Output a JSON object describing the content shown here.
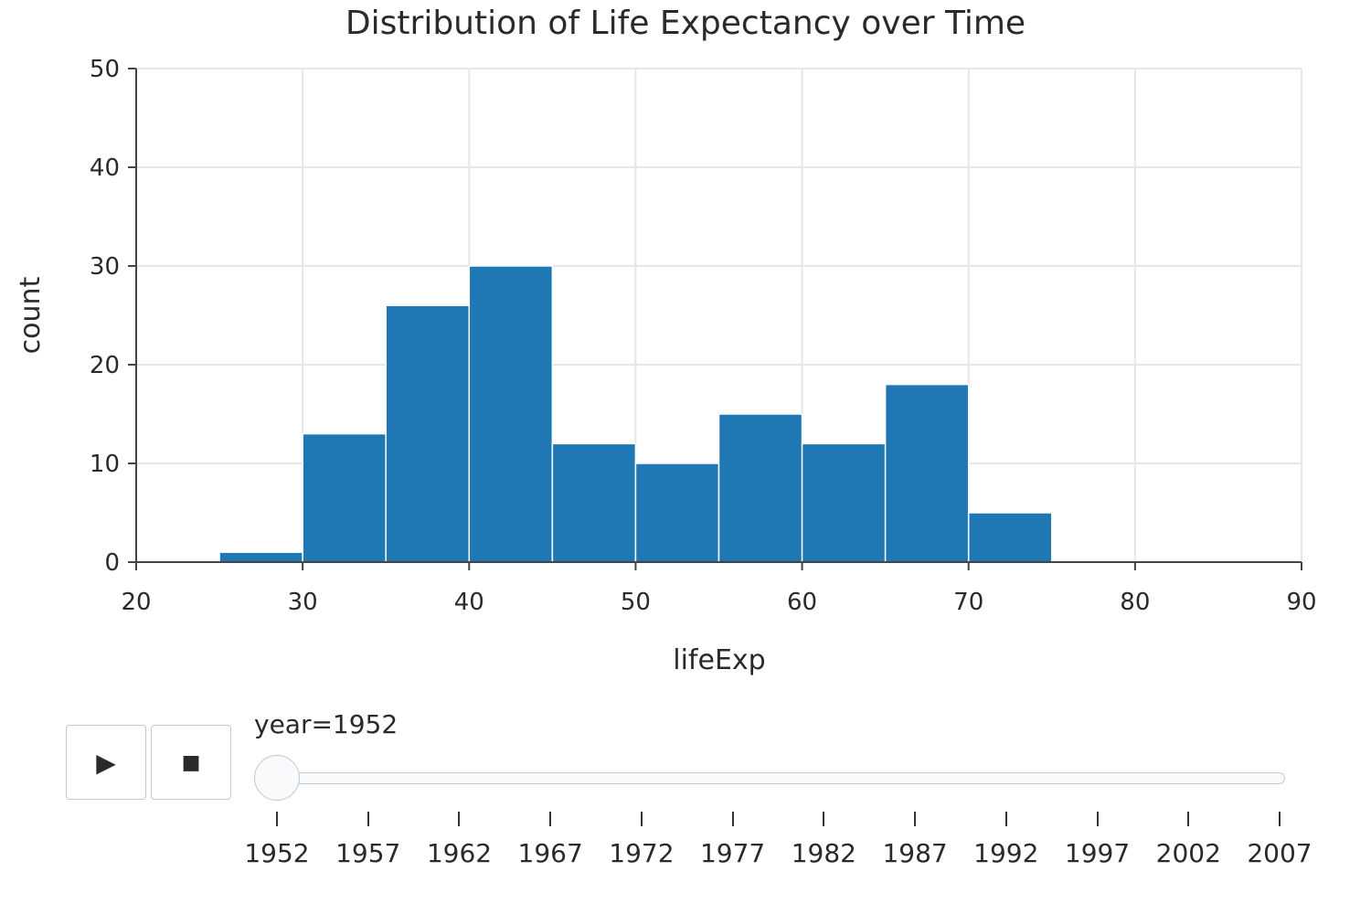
{
  "chart_data": {
    "type": "bar",
    "title": "Distribution of Life Expectancy over Time",
    "xlabel": "lifeExp",
    "ylabel": "count",
    "xlim": [
      20,
      90
    ],
    "ylim": [
      0,
      50
    ],
    "x_ticks": [
      20,
      30,
      40,
      50,
      60,
      70,
      80,
      90
    ],
    "y_ticks": [
      0,
      10,
      20,
      30,
      40,
      50
    ],
    "grid": true,
    "color": "#1f77b4",
    "bins": [
      {
        "start": 25,
        "end": 30,
        "count": 1
      },
      {
        "start": 30,
        "end": 35,
        "count": 13
      },
      {
        "start": 35,
        "end": 40,
        "count": 26
      },
      {
        "start": 40,
        "end": 45,
        "count": 30
      },
      {
        "start": 45,
        "end": 50,
        "count": 12
      },
      {
        "start": 50,
        "end": 55,
        "count": 10
      },
      {
        "start": 55,
        "end": 60,
        "count": 15
      },
      {
        "start": 60,
        "end": 65,
        "count": 12
      },
      {
        "start": 65,
        "end": 70,
        "count": 18
      },
      {
        "start": 70,
        "end": 75,
        "count": 5
      }
    ]
  },
  "controls": {
    "play_icon": "play-icon",
    "play_glyph": "▶",
    "stop_icon": "stop-icon",
    "stop_glyph": "■"
  },
  "slider": {
    "current_label": "year=1952",
    "current_value": "1952",
    "steps": [
      "1952",
      "1957",
      "1962",
      "1967",
      "1972",
      "1977",
      "1982",
      "1987",
      "1992",
      "1997",
      "2002",
      "2007"
    ]
  }
}
